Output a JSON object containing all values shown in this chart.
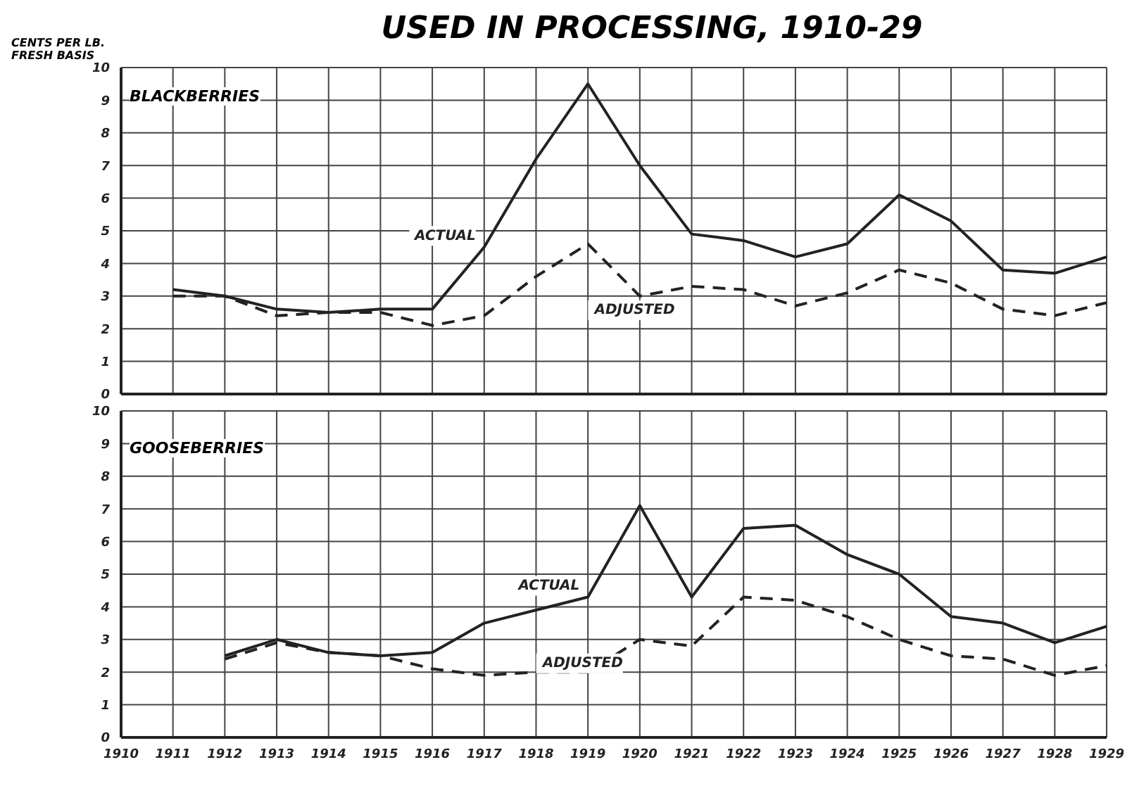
{
  "chart_data": [
    {
      "type": "line",
      "title": "USED IN PROCESSING, 1910-29",
      "subtitle": "BLACKBERRIES",
      "ylabel": "CENTS PER LB. FRESH BASIS",
      "x": [
        1911,
        1912,
        1913,
        1914,
        1915,
        1916,
        1917,
        1918,
        1919,
        1920,
        1921,
        1922,
        1923,
        1924,
        1925,
        1926,
        1927,
        1928,
        1929
      ],
      "series": [
        {
          "name": "ACTUAL",
          "color": "#222222",
          "line_style": "solid",
          "values": [
            3.2,
            3.0,
            2.6,
            2.5,
            2.6,
            2.6,
            4.5,
            7.2,
            9.5,
            7.0,
            4.9,
            4.7,
            4.2,
            4.6,
            6.1,
            5.3,
            3.8,
            3.7,
            4.2
          ]
        },
        {
          "name": "ADJUSTED",
          "color": "#222222",
          "line_style": "dashed",
          "values": [
            3.0,
            3.0,
            2.4,
            2.5,
            2.5,
            2.1,
            2.4,
            3.6,
            4.6,
            3.0,
            3.3,
            3.2,
            2.7,
            3.1,
            3.8,
            3.4,
            2.6,
            2.4,
            2.8
          ]
        }
      ],
      "xlim": [
        1910,
        1929
      ],
      "xticks": [
        1910,
        1911,
        1912,
        1913,
        1914,
        1915,
        1916,
        1917,
        1918,
        1919,
        1920,
        1921,
        1922,
        1923,
        1924,
        1925,
        1926,
        1927,
        1928,
        1929
      ],
      "ylim": [
        0,
        10
      ],
      "yticks": [
        0,
        1,
        2,
        3,
        4,
        5,
        6,
        7,
        8,
        9,
        10
      ],
      "grid": true,
      "legend": false,
      "marker": "none",
      "tick_labels": "y"
    },
    {
      "type": "line",
      "subtitle": "GOOSEBERRIES",
      "x": [
        1912,
        1913,
        1914,
        1915,
        1916,
        1917,
        1918,
        1919,
        1920,
        1921,
        1922,
        1923,
        1924,
        1925,
        1926,
        1927,
        1928,
        1929
      ],
      "series": [
        {
          "name": "ACTUAL",
          "color": "#222222",
          "line_style": "solid",
          "values": [
            2.5,
            3.0,
            2.6,
            2.5,
            2.6,
            3.5,
            3.9,
            4.3,
            7.1,
            4.3,
            6.4,
            6.5,
            5.6,
            5.0,
            3.7,
            3.5,
            2.9,
            3.4
          ]
        },
        {
          "name": "ADJUSTED",
          "color": "#222222",
          "line_style": "dashed",
          "values": [
            2.4,
            2.9,
            2.6,
            2.5,
            2.1,
            1.9,
            2.0,
            2.0,
            3.0,
            2.8,
            4.3,
            4.2,
            3.7,
            3.0,
            2.5,
            2.4,
            1.9,
            2.2
          ]
        }
      ],
      "xlim": [
        1910,
        1929
      ],
      "xticks": [
        1910,
        1911,
        1912,
        1913,
        1914,
        1915,
        1916,
        1917,
        1918,
        1919,
        1920,
        1921,
        1922,
        1923,
        1924,
        1925,
        1926,
        1927,
        1928,
        1929
      ],
      "ylim": [
        0,
        10
      ],
      "yticks": [
        0,
        1,
        2,
        3,
        4,
        5,
        6,
        7,
        8,
        9,
        10
      ],
      "grid": true,
      "legend": false,
      "marker": "none"
    }
  ]
}
